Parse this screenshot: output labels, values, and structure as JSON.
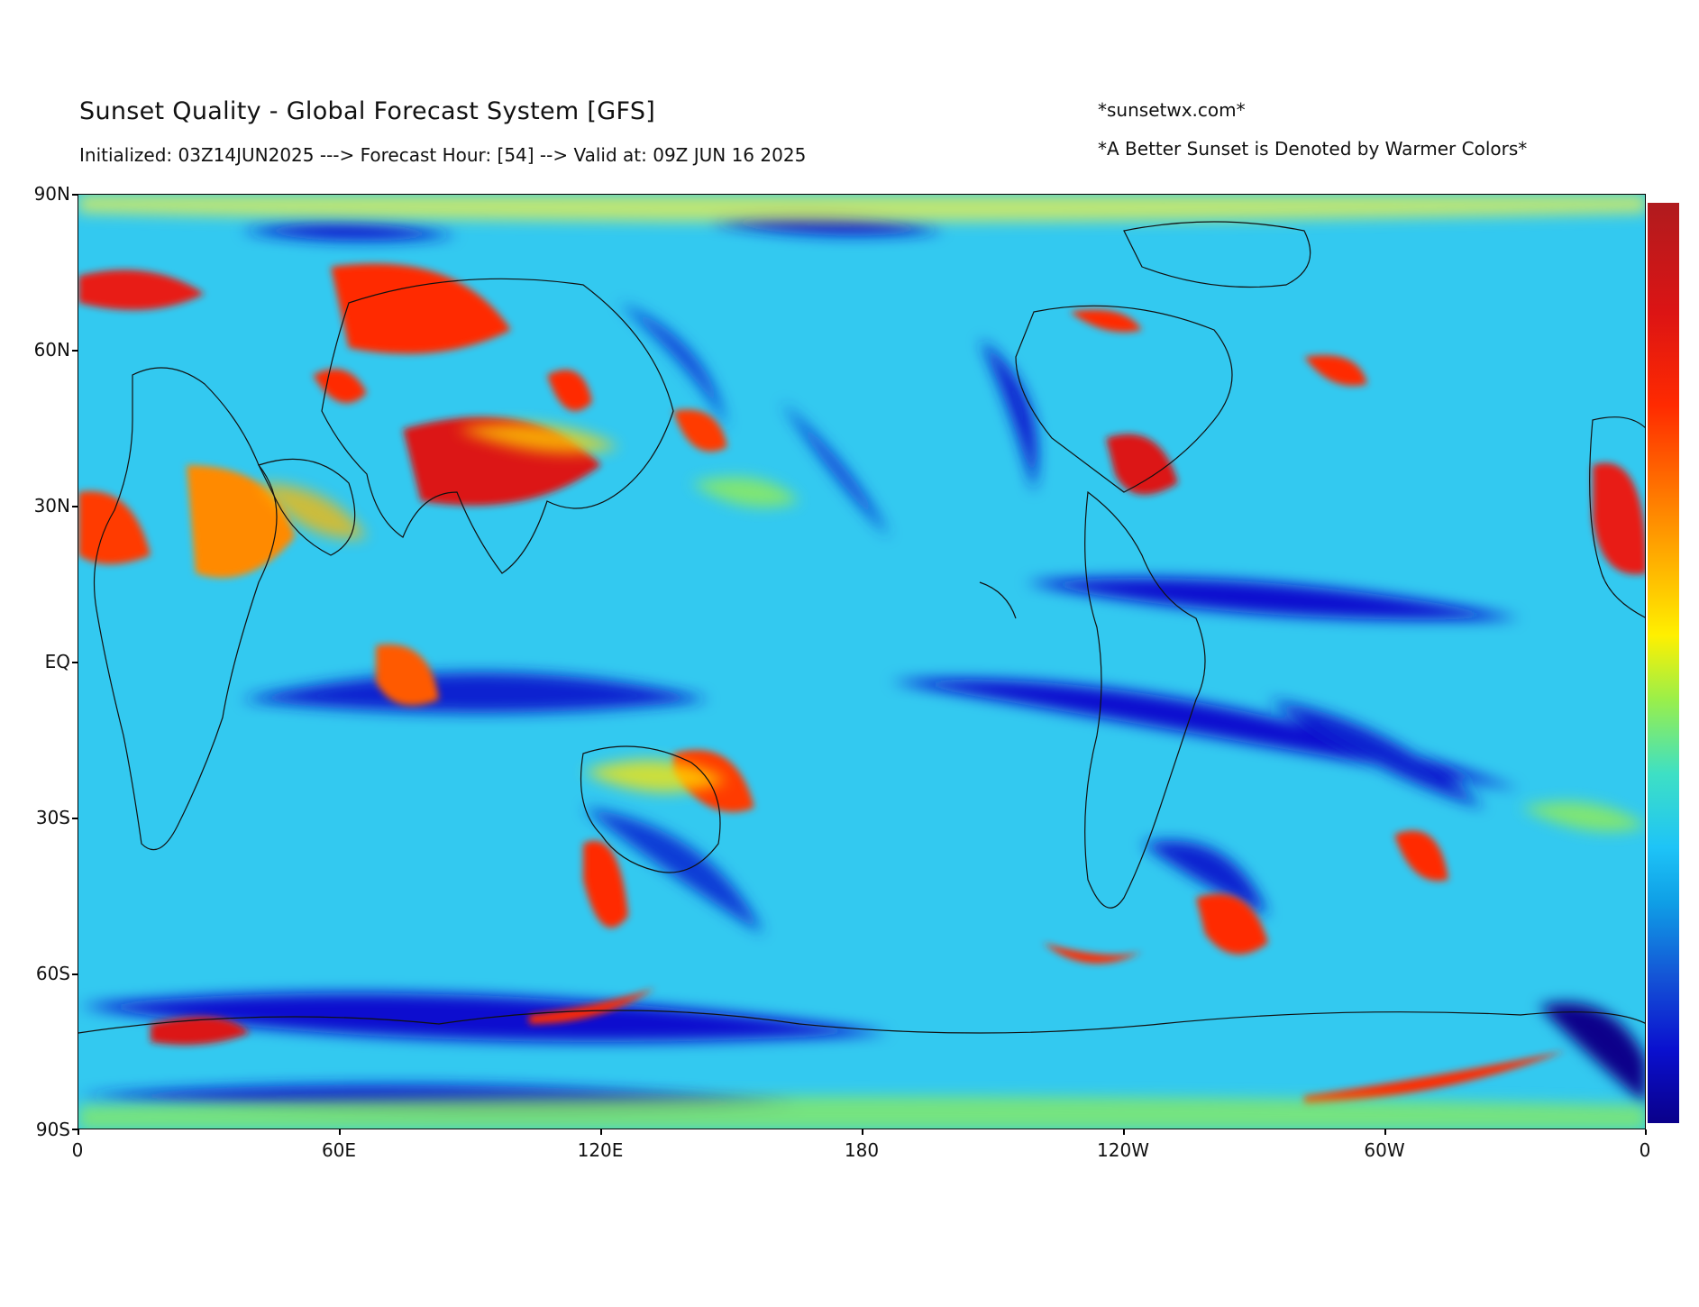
{
  "title": "Sunset Quality - Global Forecast System [GFS]",
  "subtitle": "Initialized: 03Z14JUN2025 ---> Forecast Hour: [54] --> Valid at: 09Z JUN 16 2025",
  "notes": {
    "site": "*sunsetwx.com*",
    "legend_hint": "*A Better Sunset is Denoted by Warmer Colors*"
  },
  "axes": {
    "y_ticks": [
      "90N",
      "60N",
      "30N",
      "EQ",
      "30S",
      "60S",
      "90S"
    ],
    "x_ticks": [
      "0",
      "60E",
      "120E",
      "180",
      "120W",
      "60W",
      "0"
    ],
    "lat_range": [
      -90,
      90
    ],
    "lon_range": [
      0,
      360
    ]
  },
  "colorbar": {
    "colormap": "jet",
    "warm_color": "#b01b1e",
    "cool_color": "#0a008a"
  },
  "map": {
    "projection": "equirectangular",
    "background_color": "#33c9f0"
  }
}
